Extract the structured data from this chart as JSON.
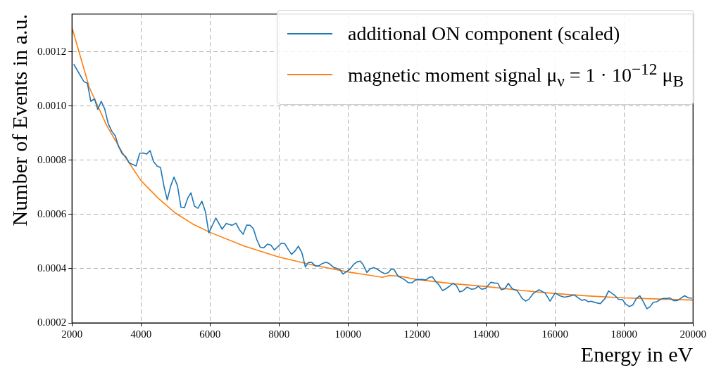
{
  "chart_data": {
    "type": "line",
    "xlabel": "Energy in eV",
    "ylabel": "Number of Events in a.u.",
    "xlim": [
      2000,
      20000
    ],
    "xticks": [
      2000,
      4000,
      6000,
      8000,
      10000,
      12000,
      14000,
      16000,
      18000,
      20000
    ],
    "ylim": [
      0.0002,
      0.00134
    ],
    "yticks": [
      {
        "value": 0.0002,
        "label": "0.0002"
      },
      {
        "value": 0.0004,
        "label": "0.0004"
      },
      {
        "value": 0.0006,
        "label": "0.0006"
      },
      {
        "value": 0.0008,
        "label": "0.0008"
      },
      {
        "value": 0.001,
        "label": "0.0010"
      },
      {
        "value": 0.0012,
        "label": "0.0012"
      }
    ],
    "grid": true,
    "legend": "top right",
    "marker": "none",
    "line_style": "solid",
    "series": [
      {
        "name": "additional ON component (scaled)",
        "color": "#1f77b4",
        "x": [
          2050,
          2343,
          2444,
          2545,
          2653,
          2747,
          2848,
          2949,
          3051,
          3152,
          3253,
          3354,
          3455,
          3556,
          3657,
          3859,
          3960,
          4061,
          4162,
          4263,
          4364,
          4465,
          4566,
          4667,
          4761,
          4862,
          4956,
          5057,
          5158,
          5259,
          5360,
          5448,
          5549,
          5650,
          5764,
          5865,
          5966,
          6168,
          6350,
          6471,
          6640,
          6754,
          6862,
          6961,
          7062,
          7162,
          7256,
          7357,
          7457,
          7558,
          7665,
          7766,
          7866,
          7966,
          8067,
          8168,
          8268,
          8362,
          8462,
          8563,
          8663,
          8764,
          8851,
          8951,
          9052,
          9152,
          9253,
          9367,
          9454,
          9568,
          9655,
          9755,
          9856,
          9956,
          10057,
          10157,
          10258,
          10358,
          10446,
          10546,
          10647,
          10747,
          10848,
          10948,
          11062,
          11162,
          11250,
          11330,
          11451,
          11551,
          11652,
          11752,
          11853,
          11953,
          12054,
          12154,
          12255,
          12355,
          12442,
          12536,
          12637,
          12737,
          12838,
          12938,
          13039,
          13139,
          13240,
          13340,
          13449,
          13583,
          13684,
          13771,
          13872,
          13987,
          14141,
          14242,
          14343,
          14444,
          14545,
          14645,
          14760,
          14908,
          15049,
          15150,
          15250,
          15365,
          15533,
          15714,
          15855,
          16003,
          16138,
          16272,
          16407,
          16561,
          16676,
          16777,
          16864,
          16965,
          17045,
          17166,
          17314,
          17449,
          17550,
          17718,
          17839,
          17953,
          18040,
          18155,
          18255,
          18356,
          18457,
          18558,
          18659,
          18760,
          18847,
          18948,
          19049,
          19130,
          19230,
          19331,
          19432,
          19546,
          19634,
          19755,
          19869,
          19970
        ],
        "values": [
          0.001155,
          0.001091,
          0.001085,
          0.001018,
          0.001027,
          0.000988,
          0.001018,
          0.000989,
          0.000935,
          0.000908,
          0.000891,
          0.00085,
          0.000824,
          0.000814,
          0.000791,
          0.000779,
          0.000826,
          0.000827,
          0.000823,
          0.000836,
          0.000795,
          0.000779,
          0.000773,
          0.000703,
          0.000654,
          0.000706,
          0.000738,
          0.000706,
          0.000627,
          0.000625,
          0.000662,
          0.00068,
          0.000631,
          0.000623,
          0.000649,
          0.000611,
          0.000532,
          0.000587,
          0.000546,
          0.000567,
          0.00056,
          0.000568,
          0.000542,
          0.000527,
          0.000561,
          0.00056,
          0.000548,
          0.000507,
          0.000479,
          0.000477,
          0.000491,
          0.000487,
          0.000469,
          0.000481,
          0.000494,
          0.000492,
          0.000471,
          0.000453,
          0.000465,
          0.000483,
          0.000459,
          0.000406,
          0.000423,
          0.000423,
          0.00041,
          0.00041,
          0.000419,
          0.000424,
          0.000419,
          0.000406,
          0.000402,
          0.000398,
          0.00038,
          0.000389,
          0.000398,
          0.000415,
          0.000425,
          0.000428,
          0.000413,
          0.000386,
          0.0004,
          0.000404,
          0.000398,
          0.000389,
          0.000382,
          0.000385,
          0.000398,
          0.000398,
          0.000372,
          0.000366,
          0.000358,
          0.000348,
          0.000348,
          0.000358,
          0.00036,
          0.00036,
          0.000358,
          0.000368,
          0.00037,
          0.000354,
          0.00034,
          0.000319,
          0.000326,
          0.000335,
          0.000346,
          0.000338,
          0.000314,
          0.000319,
          0.000332,
          0.000324,
          0.000326,
          0.000335,
          0.000324,
          0.000327,
          0.00035,
          0.000347,
          0.000346,
          0.000322,
          0.000326,
          0.000346,
          0.000326,
          0.000318,
          0.00029,
          0.00028,
          0.000288,
          0.000308,
          0.000322,
          0.00031,
          0.00028,
          0.00031,
          0.0003,
          0.000295,
          0.000298,
          0.000303,
          0.000292,
          0.000283,
          0.000286,
          0.000278,
          0.00028,
          0.000275,
          0.000271,
          0.00029,
          0.000318,
          0.000303,
          0.000287,
          0.000286,
          0.00027,
          0.00026,
          0.000266,
          0.00029,
          0.0003,
          0.000278,
          0.000252,
          0.00026,
          0.000276,
          0.000278,
          0.000286,
          0.00029,
          0.00029,
          0.000292,
          0.000282,
          0.000282,
          0.00029,
          0.0003,
          0.000292,
          0.000291
        ]
      },
      {
        "name": "magnetic moment signal μ$_{ν}$ = 1 · 10$^{−12}$ μ$_{B}$",
        "color": "#ff7f0e",
        "x": [
          2000,
          2500,
          3000,
          3500,
          4000,
          4500,
          5000,
          5500,
          6000,
          7000,
          8000,
          9000,
          10000,
          10800,
          11000,
          11200,
          11500,
          12000,
          13000,
          14000,
          15000,
          16000,
          17000,
          18000,
          19000,
          20000
        ],
        "values": [
          0.00129,
          0.00107,
          0.00093,
          0.00082,
          0.000725,
          0.00066,
          0.000605,
          0.000565,
          0.000534,
          0.000483,
          0.000443,
          0.000413,
          0.000388,
          0.000372,
          0.000368,
          0.000375,
          0.000372,
          0.00036,
          0.000345,
          0.000334,
          0.00032,
          0.000308,
          0.000299,
          0.000292,
          0.000288,
          0.000284
        ]
      }
    ]
  }
}
